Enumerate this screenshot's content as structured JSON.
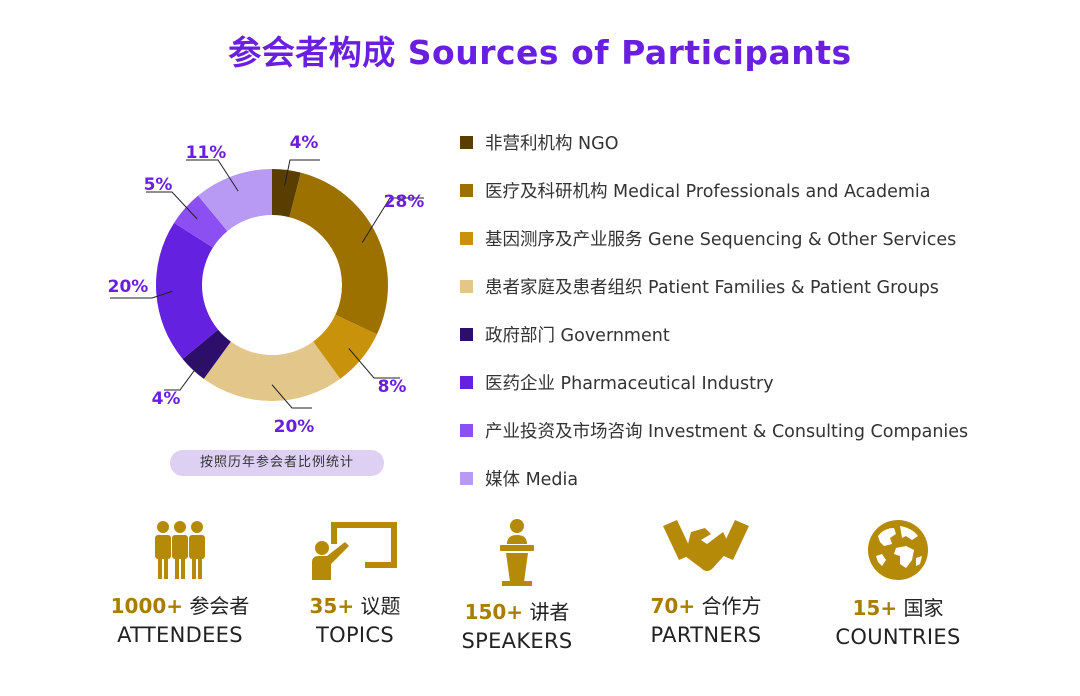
{
  "title": "参会者构成 Sources of Participants",
  "note": "按照历年参会者比例统计",
  "chart_data": {
    "type": "pie",
    "donut": true,
    "categories": [
      "非营利机构 NGO",
      "医疗及科研机构 Medical Professionals and Academia",
      "基因测序及产业服务 Gene Sequencing & Other Services",
      "患者家庭及患者组织 Patient Families & Patient Groups",
      "政府部门 Government",
      "医药企业 Pharmaceutical Industry",
      "产业投资及市场咨询 Investment & Consulting Companies",
      "媒体 Media"
    ],
    "values": [
      4,
      28,
      8,
      20,
      4,
      20,
      5,
      11
    ],
    "labels": [
      "4%",
      "28%",
      "8%",
      "20%",
      "4%",
      "20%",
      "5%",
      "11%"
    ],
    "colors": [
      "#5a3d00",
      "#9c7100",
      "#c8920a",
      "#e3c68a",
      "#2d0f6b",
      "#6421e0",
      "#8b4ff2",
      "#b89af5"
    ],
    "legend_position": "right"
  },
  "stats": [
    {
      "icon": "people-icon",
      "number": "1000+",
      "cn": "参会者",
      "en": "ATTENDEES"
    },
    {
      "icon": "presentation-icon",
      "number": "35+",
      "cn": "议题",
      "en": "TOPICS"
    },
    {
      "icon": "podium-icon",
      "number": "150+",
      "cn": "讲者",
      "en": "SPEAKERS"
    },
    {
      "icon": "handshake-icon",
      "number": "70+",
      "cn": "合作方",
      "en": "PARTNERS"
    },
    {
      "icon": "globe-icon",
      "number": "15+",
      "cn": "国家",
      "en": "COUNTRIES"
    }
  ],
  "icon_color": "#b58a08"
}
